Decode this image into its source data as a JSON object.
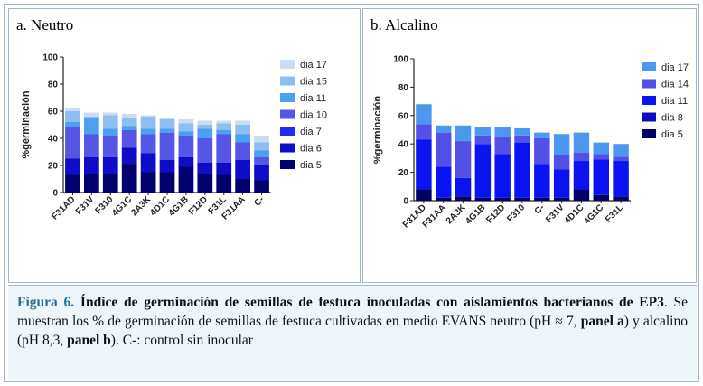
{
  "chart_data": [
    {
      "type": "bar",
      "stacked": true,
      "title": "a. Neutro",
      "ylabel": "%germinación",
      "ylim": [
        0,
        100
      ],
      "yticks": [
        0,
        20,
        40,
        60,
        80,
        100
      ],
      "categories": [
        "F31AD",
        "F31V",
        "F310",
        "4G1C",
        "2A3K",
        "4D1C",
        "4G1B",
        "F12D",
        "F31L",
        "F31AA",
        "C-"
      ],
      "series": [
        {
          "name": "dia 5",
          "color": "#00006e",
          "values": [
            13,
            14,
            14,
            21,
            15,
            15,
            19,
            14,
            13,
            10,
            9
          ]
        },
        {
          "name": "dia 6",
          "color": "#0d0dc8",
          "values": [
            12,
            12,
            12,
            12,
            14,
            9,
            7,
            8,
            9,
            14,
            11
          ]
        },
        {
          "name": "dia 7",
          "color": "#1f2bf0",
          "values": [
            0,
            0,
            0,
            0,
            0,
            0,
            0,
            0,
            0,
            0,
            0
          ]
        },
        {
          "name": "dia 10",
          "color": "#5555e6",
          "values": [
            23,
            17,
            16,
            13,
            14,
            20,
            16,
            18,
            21,
            13,
            6
          ]
        },
        {
          "name": "dia 11",
          "color": "#4d9ff0",
          "values": [
            4,
            12,
            5,
            3,
            4,
            3,
            3,
            7,
            3,
            6,
            5
          ]
        },
        {
          "name": "dia 15",
          "color": "#8ebef2",
          "values": [
            8,
            1,
            10,
            6,
            9,
            7,
            6,
            3,
            5,
            7,
            6
          ]
        },
        {
          "name": "dia 17",
          "color": "#c9dcf3",
          "values": [
            2,
            3,
            2,
            3,
            1,
            1,
            3,
            3,
            2,
            3,
            5
          ]
        }
      ],
      "legend_position": "right"
    },
    {
      "type": "bar",
      "stacked": true,
      "title": "b. Alcalino",
      "ylabel": "%germinación",
      "ylim": [
        0,
        100
      ],
      "yticks": [
        0,
        20,
        40,
        60,
        80,
        100
      ],
      "categories": [
        "F31AD",
        "F31AA",
        "2A3K",
        "4G1B",
        "F12D",
        "F310",
        "C-",
        "F31V",
        "4D1C",
        "4G1C",
        "F31L"
      ],
      "series": [
        {
          "name": "dia 5",
          "color": "#000066",
          "values": [
            8,
            2,
            3,
            2,
            2,
            2,
            2,
            2,
            8,
            4,
            3
          ]
        },
        {
          "name": "dia 8",
          "color": "#0b0bc0",
          "values": [
            0,
            0,
            0,
            0,
            0,
            0,
            0,
            0,
            0,
            0,
            0
          ]
        },
        {
          "name": "dia 11",
          "color": "#0a14f0",
          "values": [
            35,
            22,
            13,
            38,
            31,
            39,
            24,
            20,
            20,
            25,
            25
          ]
        },
        {
          "name": "dia 14",
          "color": "#5151e6",
          "values": [
            11,
            24,
            26,
            6,
            12,
            5,
            18,
            10,
            6,
            4,
            3
          ]
        },
        {
          "name": "dia 17",
          "color": "#4b98ee",
          "values": [
            14,
            5,
            11,
            6,
            7,
            5,
            4,
            15,
            14,
            8,
            9
          ]
        }
      ],
      "legend_position": "right"
    }
  ],
  "caption": {
    "label": "Figura 6.",
    "title": "Índice de germinación de semillas de festuca inoculadas con aislamientos bacterianos de EP3",
    "text_1": ". Se muestran los % de germinación de semillas de festuca cultivadas en medio EVANS neutro (pH ≈ 7, ",
    "bold_a": "panel a",
    "text_2": ") y alcalino (pH 8,3, ",
    "bold_b": "panel b",
    "text_3": "). C-: control sin inocular"
  }
}
